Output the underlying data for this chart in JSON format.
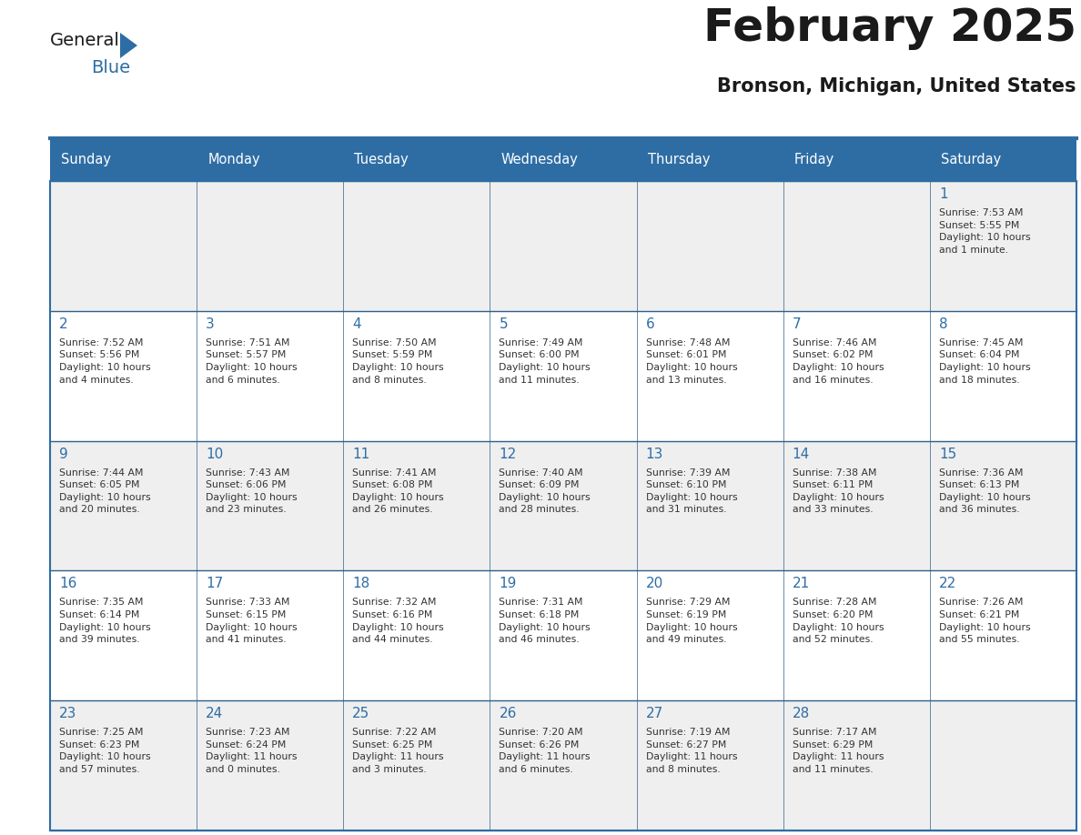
{
  "title": "February 2025",
  "subtitle": "Bronson, Michigan, United States",
  "header_bg": "#2E6DA4",
  "header_text_color": "#FFFFFF",
  "row_bg_colors": [
    "#EFEFEF",
    "#FFFFFF",
    "#EFEFEF",
    "#FFFFFF",
    "#EFEFEF"
  ],
  "date_color": "#2E6DA4",
  "text_color": "#333333",
  "title_color": "#1a1a1a",
  "subtitle_color": "#1a1a1a",
  "grid_line_color": "#2E5F8A",
  "days_of_week": [
    "Sunday",
    "Monday",
    "Tuesday",
    "Wednesday",
    "Thursday",
    "Friday",
    "Saturday"
  ],
  "weeks": [
    [
      {
        "day": null,
        "info": null
      },
      {
        "day": null,
        "info": null
      },
      {
        "day": null,
        "info": null
      },
      {
        "day": null,
        "info": null
      },
      {
        "day": null,
        "info": null
      },
      {
        "day": null,
        "info": null
      },
      {
        "day": 1,
        "info": "Sunrise: 7:53 AM\nSunset: 5:55 PM\nDaylight: 10 hours\nand 1 minute."
      }
    ],
    [
      {
        "day": 2,
        "info": "Sunrise: 7:52 AM\nSunset: 5:56 PM\nDaylight: 10 hours\nand 4 minutes."
      },
      {
        "day": 3,
        "info": "Sunrise: 7:51 AM\nSunset: 5:57 PM\nDaylight: 10 hours\nand 6 minutes."
      },
      {
        "day": 4,
        "info": "Sunrise: 7:50 AM\nSunset: 5:59 PM\nDaylight: 10 hours\nand 8 minutes."
      },
      {
        "day": 5,
        "info": "Sunrise: 7:49 AM\nSunset: 6:00 PM\nDaylight: 10 hours\nand 11 minutes."
      },
      {
        "day": 6,
        "info": "Sunrise: 7:48 AM\nSunset: 6:01 PM\nDaylight: 10 hours\nand 13 minutes."
      },
      {
        "day": 7,
        "info": "Sunrise: 7:46 AM\nSunset: 6:02 PM\nDaylight: 10 hours\nand 16 minutes."
      },
      {
        "day": 8,
        "info": "Sunrise: 7:45 AM\nSunset: 6:04 PM\nDaylight: 10 hours\nand 18 minutes."
      }
    ],
    [
      {
        "day": 9,
        "info": "Sunrise: 7:44 AM\nSunset: 6:05 PM\nDaylight: 10 hours\nand 20 minutes."
      },
      {
        "day": 10,
        "info": "Sunrise: 7:43 AM\nSunset: 6:06 PM\nDaylight: 10 hours\nand 23 minutes."
      },
      {
        "day": 11,
        "info": "Sunrise: 7:41 AM\nSunset: 6:08 PM\nDaylight: 10 hours\nand 26 minutes."
      },
      {
        "day": 12,
        "info": "Sunrise: 7:40 AM\nSunset: 6:09 PM\nDaylight: 10 hours\nand 28 minutes."
      },
      {
        "day": 13,
        "info": "Sunrise: 7:39 AM\nSunset: 6:10 PM\nDaylight: 10 hours\nand 31 minutes."
      },
      {
        "day": 14,
        "info": "Sunrise: 7:38 AM\nSunset: 6:11 PM\nDaylight: 10 hours\nand 33 minutes."
      },
      {
        "day": 15,
        "info": "Sunrise: 7:36 AM\nSunset: 6:13 PM\nDaylight: 10 hours\nand 36 minutes."
      }
    ],
    [
      {
        "day": 16,
        "info": "Sunrise: 7:35 AM\nSunset: 6:14 PM\nDaylight: 10 hours\nand 39 minutes."
      },
      {
        "day": 17,
        "info": "Sunrise: 7:33 AM\nSunset: 6:15 PM\nDaylight: 10 hours\nand 41 minutes."
      },
      {
        "day": 18,
        "info": "Sunrise: 7:32 AM\nSunset: 6:16 PM\nDaylight: 10 hours\nand 44 minutes."
      },
      {
        "day": 19,
        "info": "Sunrise: 7:31 AM\nSunset: 6:18 PM\nDaylight: 10 hours\nand 46 minutes."
      },
      {
        "day": 20,
        "info": "Sunrise: 7:29 AM\nSunset: 6:19 PM\nDaylight: 10 hours\nand 49 minutes."
      },
      {
        "day": 21,
        "info": "Sunrise: 7:28 AM\nSunset: 6:20 PM\nDaylight: 10 hours\nand 52 minutes."
      },
      {
        "day": 22,
        "info": "Sunrise: 7:26 AM\nSunset: 6:21 PM\nDaylight: 10 hours\nand 55 minutes."
      }
    ],
    [
      {
        "day": 23,
        "info": "Sunrise: 7:25 AM\nSunset: 6:23 PM\nDaylight: 10 hours\nand 57 minutes."
      },
      {
        "day": 24,
        "info": "Sunrise: 7:23 AM\nSunset: 6:24 PM\nDaylight: 11 hours\nand 0 minutes."
      },
      {
        "day": 25,
        "info": "Sunrise: 7:22 AM\nSunset: 6:25 PM\nDaylight: 11 hours\nand 3 minutes."
      },
      {
        "day": 26,
        "info": "Sunrise: 7:20 AM\nSunset: 6:26 PM\nDaylight: 11 hours\nand 6 minutes."
      },
      {
        "day": 27,
        "info": "Sunrise: 7:19 AM\nSunset: 6:27 PM\nDaylight: 11 hours\nand 8 minutes."
      },
      {
        "day": 28,
        "info": "Sunrise: 7:17 AM\nSunset: 6:29 PM\nDaylight: 11 hours\nand 11 minutes."
      },
      {
        "day": null,
        "info": null
      }
    ]
  ],
  "logo_text1": "General",
  "logo_text2": "Blue",
  "logo_color1": "#1a1a1a",
  "logo_color2": "#2E6DA4",
  "logo_triangle_color": "#2E6DA4",
  "figwidth": 11.88,
  "figheight": 9.18,
  "dpi": 100
}
